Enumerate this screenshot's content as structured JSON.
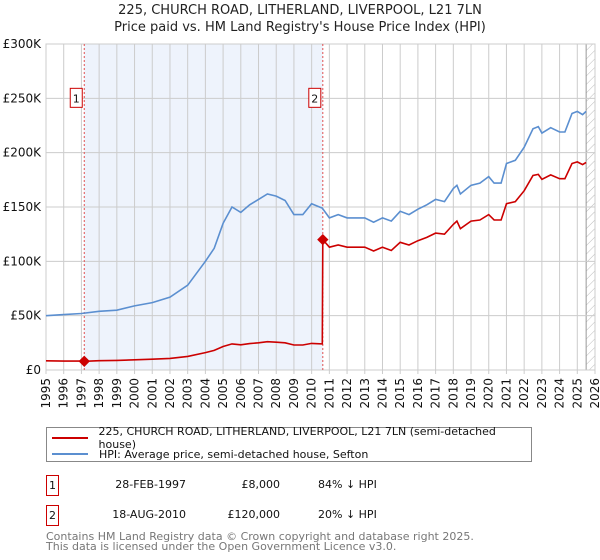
{
  "chart_data": {
    "type": "line",
    "title": "225, CHURCH ROAD, LITHERLAND, LIVERPOOL, L21 7LN",
    "subtitle": "Price paid vs. HM Land Registry's House Price Index (HPI)",
    "xlim": [
      1995,
      2026
    ],
    "ylim": [
      0,
      300000
    ],
    "x_ticks": [
      "1995",
      "1996",
      "1997",
      "1998",
      "1999",
      "2000",
      "2001",
      "2002",
      "2003",
      "2004",
      "2005",
      "2006",
      "2007",
      "2008",
      "2009",
      "2010",
      "2011",
      "2012",
      "2013",
      "2014",
      "2015",
      "2016",
      "2017",
      "2018",
      "2019",
      "2020",
      "2021",
      "2022",
      "2023",
      "2024",
      "2025",
      "2026"
    ],
    "y_ticks": [
      {
        "value": 0,
        "label": "£0"
      },
      {
        "value": 50000,
        "label": "£50K"
      },
      {
        "value": 100000,
        "label": "£100K"
      },
      {
        "value": 150000,
        "label": "£150K"
      },
      {
        "value": 200000,
        "label": "£200K"
      },
      {
        "value": 250000,
        "label": "£250K"
      },
      {
        "value": 300000,
        "label": "£300K"
      }
    ],
    "grid": true,
    "shaded_range": [
      1997.16,
      2010.63
    ],
    "forecast_hatch_from": 2025.5,
    "series": [
      {
        "name": "225, CHURCH ROAD, LITHERLAND, LIVERPOOL, L21 7LN (semi-detached house)",
        "color": "#cc0000",
        "x": [
          1995,
          1996,
          1997,
          1997.16,
          1998,
          1999,
          2000,
          2001,
          2002,
          2003,
          2004,
          2004.5,
          2005,
          2005.5,
          2006,
          2006.5,
          2007,
          2007.5,
          2008,
          2008.5,
          2009,
          2009.5,
          2010,
          2010.6,
          2010.63,
          2011,
          2011.5,
          2012,
          2013,
          2013.5,
          2014,
          2014.5,
          2015,
          2015.5,
          2016,
          2016.5,
          2017,
          2017.5,
          2018,
          2018.2,
          2018.4,
          2019,
          2019.5,
          2020,
          2020.3,
          2020.7,
          2021,
          2021.5,
          2022,
          2022.5,
          2022.8,
          2023,
          2023.5,
          2024,
          2024.3,
          2024.7,
          2025,
          2025.3,
          2025.5
        ],
        "y": [
          8500,
          8200,
          8300,
          8000,
          8600,
          8800,
          9400,
          9900,
          10700,
          12500,
          16000,
          18000,
          21600,
          24000,
          23200,
          24300,
          25000,
          26000,
          25600,
          25000,
          23000,
          23000,
          24500,
          24000,
          120000,
          113000,
          115000,
          113000,
          113000,
          109500,
          113000,
          110000,
          117500,
          115000,
          119000,
          122000,
          126000,
          125000,
          134000,
          137000,
          130000,
          137000,
          138000,
          143000,
          138000,
          138000,
          153000,
          155000,
          165000,
          179000,
          180000,
          175500,
          179500,
          176000,
          176000,
          190000,
          191500,
          189000,
          191000
        ]
      },
      {
        "name": "HPI: Average price, semi-detached house, Sefton",
        "color": "#5b8fd0",
        "x": [
          1995,
          1996,
          1997,
          1998,
          1999,
          2000,
          2001,
          2002,
          2003,
          2004,
          2004.5,
          2005,
          2005.5,
          2006,
          2006.5,
          2007,
          2007.5,
          2008,
          2008.5,
          2009,
          2009.5,
          2010,
          2010.6,
          2011,
          2011.5,
          2012,
          2013,
          2013.5,
          2014,
          2014.5,
          2015,
          2015.5,
          2016,
          2016.5,
          2017,
          2017.5,
          2018,
          2018.2,
          2018.4,
          2019,
          2019.5,
          2020,
          2020.3,
          2020.7,
          2021,
          2021.5,
          2022,
          2022.5,
          2022.8,
          2023,
          2023.5,
          2024,
          2024.3,
          2024.7,
          2025,
          2025.3,
          2025.5
        ],
        "y": [
          50000,
          51000,
          52000,
          54000,
          55000,
          59000,
          62000,
          67000,
          78000,
          100000,
          112000,
          135000,
          150000,
          145000,
          152000,
          157000,
          162000,
          160000,
          156000,
          143000,
          143000,
          153000,
          149000,
          140000,
          143000,
          140000,
          140000,
          136000,
          140000,
          137000,
          146000,
          143000,
          148000,
          152000,
          157000,
          155000,
          167000,
          170000,
          162000,
          170000,
          172000,
          178000,
          172000,
          172000,
          190000,
          193000,
          205000,
          222000,
          224000,
          218000,
          223000,
          219000,
          219000,
          236000,
          238000,
          235000,
          238000
        ]
      }
    ],
    "annotations": [
      {
        "label": "1",
        "x": 1997.16,
        "y": 8000
      },
      {
        "label": "2",
        "x": 2010.63,
        "y": 120000
      }
    ]
  },
  "legend": {
    "red": "225, CHURCH ROAD, LITHERLAND, LIVERPOOL, L21 7LN (semi-detached house)",
    "blue": "HPI: Average price, semi-detached house, Sefton"
  },
  "transactions": [
    {
      "num": "1",
      "date": "28-FEB-1997",
      "price": "£8,000",
      "hpi": "84% ↓ HPI"
    },
    {
      "num": "2",
      "date": "18-AUG-2010",
      "price": "£120,000",
      "hpi": "20% ↓ HPI"
    }
  ],
  "footer": {
    "line1": "Contains HM Land Registry data © Crown copyright and database right 2025.",
    "line2": "This data is licensed under the Open Government Licence v3.0."
  }
}
